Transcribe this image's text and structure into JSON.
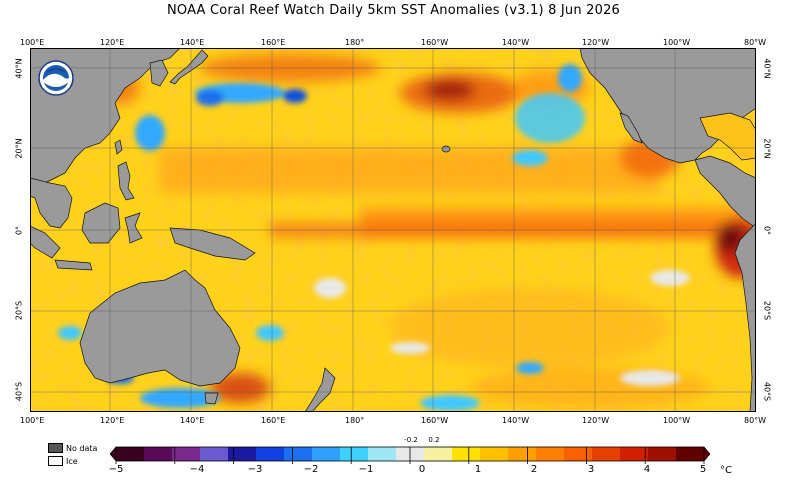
{
  "title": "NOAA Coral Reef Watch Daily 5km SST Anomalies  (v3.1)   8 Jun 2026",
  "longitude_labels": [
    "100°E",
    "120°E",
    "140°E",
    "160°E",
    "180°",
    "160°W",
    "140°W",
    "120°W",
    "100°W",
    "80°W"
  ],
  "latitude_labels": [
    "40°N",
    "20°N",
    "0°",
    "20°S",
    "40°S"
  ],
  "legend": {
    "no_data": "No data",
    "ice": "Ice",
    "no_data_color": "#555555",
    "ice_color": "#ffffff"
  },
  "colorbar": {
    "tick_labels": [
      "−5",
      "−4",
      "−3",
      "−2",
      "−1",
      "0",
      "1",
      "2",
      "3",
      "4",
      "5"
    ],
    "small_labels": [
      "-0.2",
      "0.2"
    ],
    "unit": "°C",
    "colors": [
      "#3a0020",
      "#5a0a5a",
      "#7a2a8a",
      "#6a5ad0",
      "#1a1aa0",
      "#1040e0",
      "#1c70f0",
      "#30a0ff",
      "#40d0ff",
      "#9ee8f5",
      "#e8e8e8",
      "#f5f0a0",
      "#ffe000",
      "#ffc000",
      "#ffa000",
      "#ff8000",
      "#f86000",
      "#e84000",
      "#d02000",
      "#a01000",
      "#600000"
    ]
  },
  "map_colors": {
    "land": "#9a9a9a",
    "ocean_base": "#ffd21a",
    "warm": "#ff9a1a",
    "hot": "#e8401a",
    "cold": "#30a8ff",
    "grid": "#555555"
  }
}
